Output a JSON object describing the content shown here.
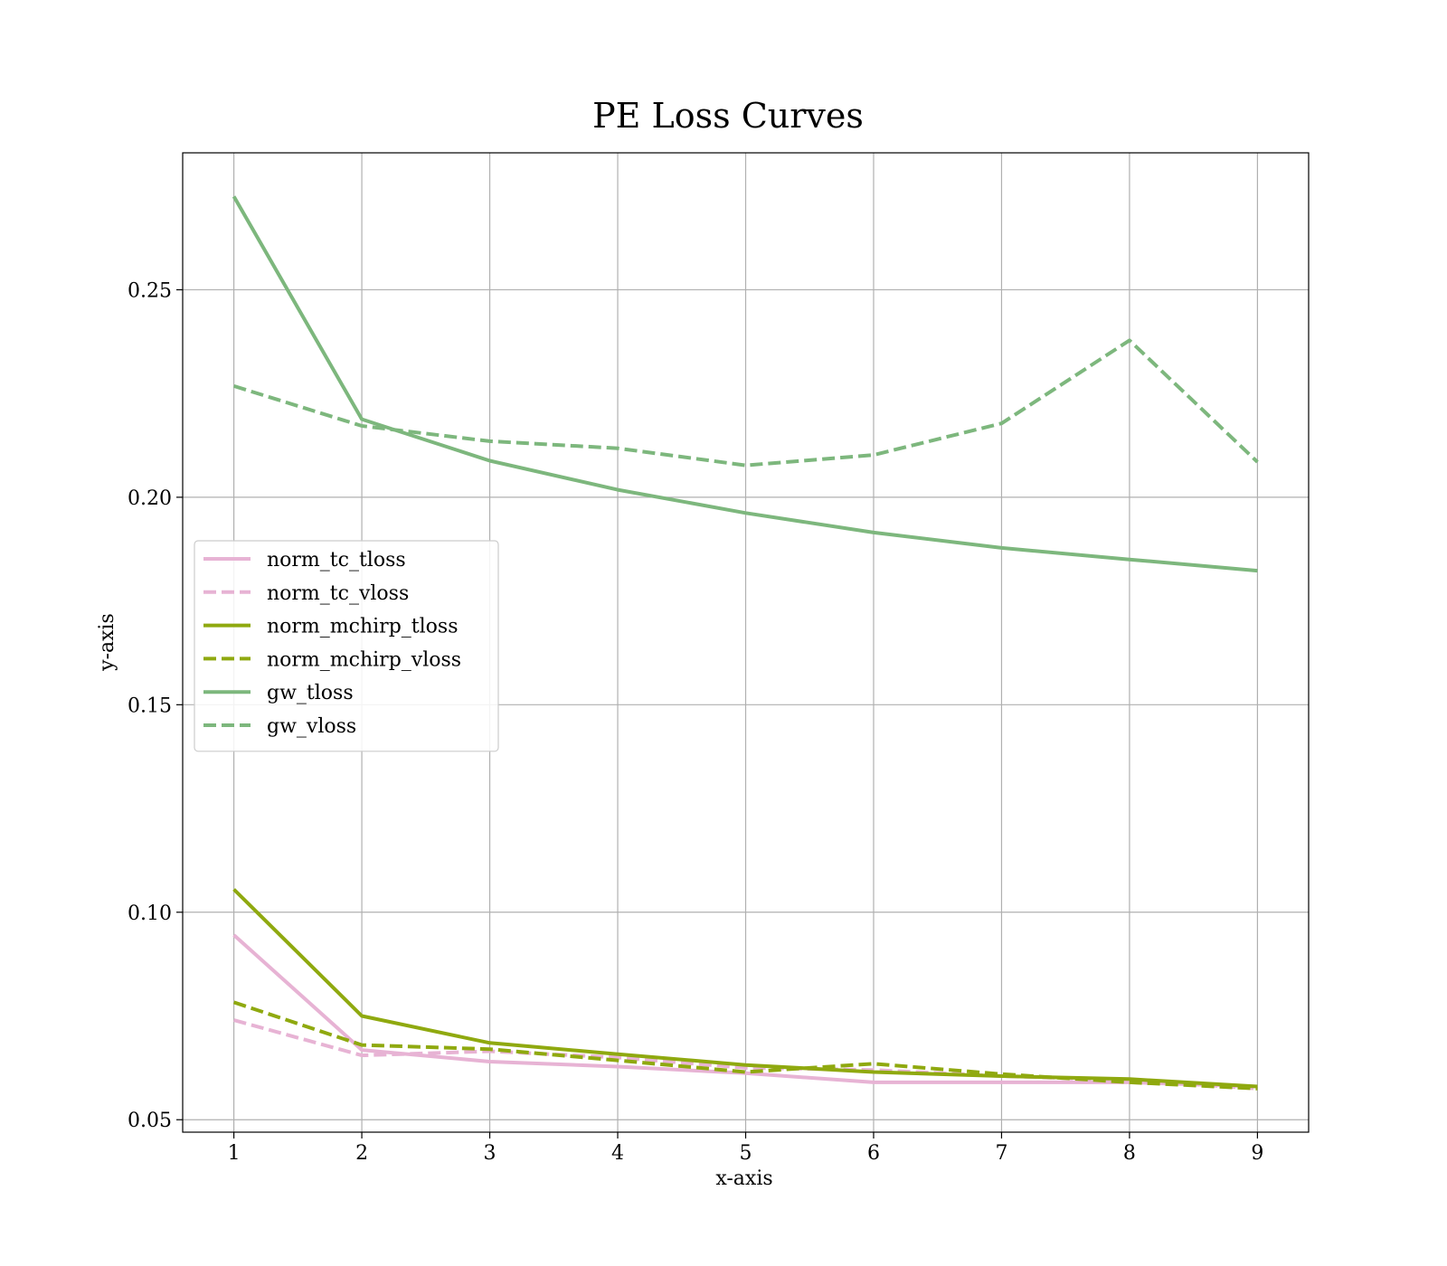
{
  "chart_data": {
    "type": "line",
    "title": "PE Loss Curves",
    "xlabel": "x-axis",
    "ylabel": "y-axis",
    "x": [
      1,
      2,
      3,
      4,
      5,
      6,
      7,
      8,
      9
    ],
    "xlim": [
      0.6,
      9.4
    ],
    "ylim": [
      0.047,
      0.283
    ],
    "xticks": [
      1,
      2,
      3,
      4,
      5,
      6,
      7,
      8,
      9
    ],
    "yticks": [
      0.05,
      0.1,
      0.15,
      0.2,
      0.25
    ],
    "ytick_labels": [
      "0.05",
      "0.10",
      "0.15",
      "0.20",
      "0.25"
    ],
    "grid": true,
    "legend_position": "center-left",
    "series": [
      {
        "name": "norm_tc_tloss",
        "color": "#e7b3d4",
        "dash": "solid",
        "values": [
          0.0945,
          0.0668,
          0.064,
          0.0628,
          0.0612,
          0.059,
          0.059,
          0.059,
          0.058
        ]
      },
      {
        "name": "norm_tc_vloss",
        "color": "#e7b3d4",
        "dash": "dashed",
        "values": [
          0.074,
          0.0655,
          0.0665,
          0.065,
          0.0625,
          0.062,
          0.0605,
          0.0595,
          0.0575
        ]
      },
      {
        "name": "norm_mchirp_tloss",
        "color": "#8fa90f",
        "dash": "solid",
        "values": [
          0.1055,
          0.075,
          0.0685,
          0.0658,
          0.0632,
          0.0615,
          0.0605,
          0.0598,
          0.058
        ]
      },
      {
        "name": "norm_mchirp_vloss",
        "color": "#8fa90f",
        "dash": "dashed",
        "values": [
          0.0783,
          0.068,
          0.067,
          0.0643,
          0.0615,
          0.0635,
          0.061,
          0.059,
          0.0575
        ]
      },
      {
        "name": "gw_tloss",
        "color": "#7db77d",
        "dash": "solid",
        "values": [
          0.2725,
          0.2188,
          0.2088,
          0.2018,
          0.1962,
          0.1915,
          0.1878,
          0.185,
          0.1823
        ]
      },
      {
        "name": "gw_vloss",
        "color": "#7db77d",
        "dash": "dashed",
        "values": [
          0.2268,
          0.2172,
          0.2135,
          0.2118,
          0.2077,
          0.2102,
          0.2178,
          0.2378,
          0.2085
        ]
      }
    ]
  }
}
